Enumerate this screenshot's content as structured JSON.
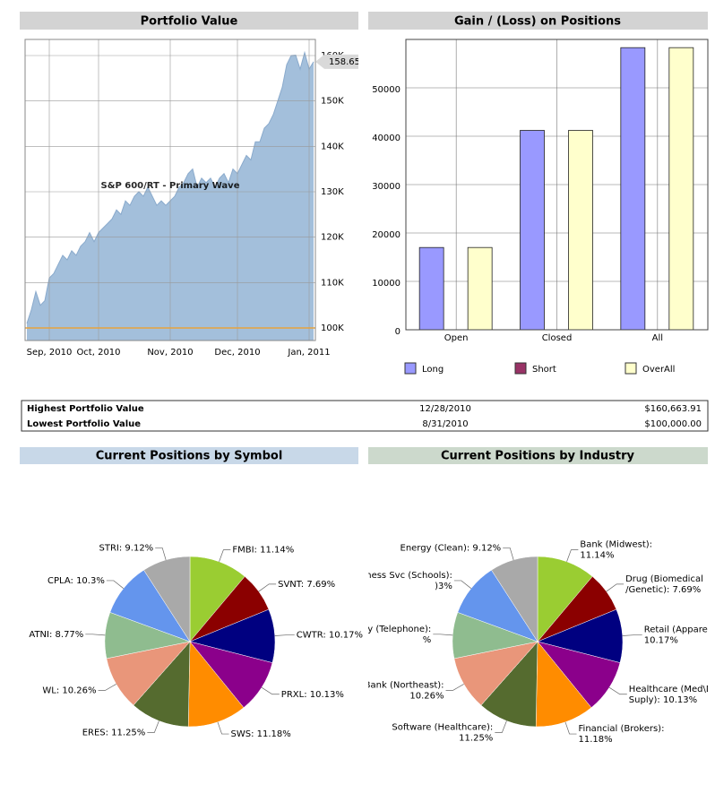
{
  "chart_data": [
    {
      "type": "area",
      "title": "Portfolio Value",
      "watermark": "S&P 600/RT - Primary Wave",
      "categories": [
        null,
        null,
        null,
        null,
        null,
        "Sep, 2010",
        null,
        null,
        null,
        null,
        null,
        null,
        null,
        null,
        null,
        null,
        "Oct, 2010",
        null,
        null,
        null,
        null,
        null,
        null,
        null,
        null,
        null,
        null,
        null,
        null,
        null,
        null,
        null,
        "Nov, 2010",
        null,
        null,
        null,
        null,
        null,
        null,
        null,
        null,
        null,
        null,
        null,
        null,
        null,
        null,
        "Dec, 2010",
        null,
        null,
        null,
        null,
        null,
        null,
        null,
        null,
        null,
        null,
        null,
        null,
        null,
        null,
        null,
        "Jan, 2011",
        null
      ],
      "values": [
        101,
        104,
        108,
        105,
        106,
        111,
        112,
        114,
        116,
        115,
        117,
        116,
        118,
        119,
        121,
        119,
        121,
        122,
        123,
        124,
        126,
        125,
        128,
        127,
        129,
        130,
        129,
        131,
        129,
        127,
        128,
        127,
        128,
        129,
        131,
        132,
        134,
        135,
        131,
        133,
        132,
        133,
        131,
        133,
        134,
        132,
        135,
        134,
        136,
        138,
        137,
        141,
        141,
        144,
        145,
        147,
        150,
        153,
        158,
        160,
        160.1,
        157,
        160.66,
        157,
        158.65
      ],
      "value_labels": [
        null,
        null,
        null,
        null,
        null,
        null,
        null,
        null,
        null,
        null,
        null,
        null,
        null,
        null,
        null,
        null,
        null,
        null,
        null,
        null,
        null,
        null,
        null,
        null,
        null,
        null,
        null,
        null,
        null,
        null,
        null,
        null,
        null,
        null,
        null,
        null,
        null,
        null,
        null,
        null,
        null,
        null,
        null,
        null,
        null,
        null,
        null,
        null,
        null,
        null,
        null,
        null,
        null,
        null,
        null,
        null,
        null,
        null,
        null,
        null,
        null,
        null,
        null,
        null,
        "158.65"
      ],
      "color": "#a3bfdb",
      "line_color": "#8aaacc",
      "baseline": 100,
      "baseline_color": "#e8a33c",
      "ylim": [
        97.24,
        163.55
      ],
      "yticks": [
        {
          "value": 100,
          "label": "100K"
        },
        {
          "value": 110,
          "label": "110K"
        },
        {
          "value": 120,
          "label": "120K"
        },
        {
          "value": 130,
          "label": "130K"
        },
        {
          "value": 140,
          "label": "140K"
        },
        {
          "value": 150,
          "label": "150K"
        },
        {
          "value": 160,
          "label": "160K"
        }
      ],
      "grid": true
    },
    {
      "type": "bar",
      "title": "Gain / (Loss) on Positions",
      "categories": [
        "Open",
        "Closed",
        "All"
      ],
      "series": [
        {
          "name": "Long",
          "color": "#9999ff",
          "values": [
            17000,
            41200,
            58300
          ]
        },
        {
          "name": "Short",
          "color": "#993366",
          "values": [
            0,
            0,
            0
          ]
        },
        {
          "name": "OverAll",
          "color": "#ffffcc",
          "values": [
            17000,
            41200,
            58300
          ]
        }
      ],
      "ylim": [
        0,
        60000
      ],
      "yticks": [
        0,
        10000,
        20000,
        30000,
        40000,
        50000
      ],
      "grid": true
    },
    {
      "type": "pie",
      "title": "Current Positions by Symbol",
      "values": [
        11.14,
        7.69,
        10.17,
        10.13,
        11.18,
        11.25,
        10.26,
        8.77,
        10.3,
        9.12
      ],
      "value_labels": [
        [
          "FMBI: 11.14%"
        ],
        [
          "SVNT: 7.69%"
        ],
        [
          "CWTR: 10.17%"
        ],
        [
          "PRXL: 10.13%"
        ],
        [
          "SWS: 11.18%"
        ],
        [
          "ERES: 11.25%"
        ],
        [
          "WL: 10.26%"
        ],
        [
          "ATNI: 8.77%"
        ],
        [
          "CPLA: 10.3%"
        ],
        [
          "STRI: 9.12%"
        ]
      ],
      "colors": [
        "#9acd32",
        "#8b0000",
        "#000080",
        "#8b008b",
        "#ff8c00",
        "#556b2f",
        "#e9967a",
        "#8fbc8f",
        "#6495ed",
        "#a9a9a9"
      ]
    },
    {
      "type": "pie",
      "title": "Current Positions by Industry",
      "values": [
        11.14,
        7.69,
        10.17,
        10.13,
        11.18,
        11.25,
        10.26,
        8.77,
        10.3,
        9.12
      ],
      "value_labels": [
        [
          "Bank (Midwest):",
          "11.14%"
        ],
        [
          "Drug (Biomedical",
          "/Genetic): 7.69%"
        ],
        [
          "Retail (Apparel",
          "10.17%"
        ],
        [
          "Healthcare (Med\\D",
          "Suply): 10.13%"
        ],
        [
          "Financial (Brokers):",
          "11.18%"
        ],
        [
          "Software (Healthcare):",
          "11.25%"
        ],
        [
          "Bank (Northeast):",
          "10.26%"
        ],
        [
          "ty (Telephone):",
          "%"
        ],
        [
          "usiness Svc (Schools):",
          ")3%"
        ],
        [
          "Energy (Clean): 9.12%"
        ]
      ],
      "colors": [
        "#9acd32",
        "#8b0000",
        "#000080",
        "#8b008b",
        "#ff8c00",
        "#556b2f",
        "#e9967a",
        "#8fbc8f",
        "#6495ed",
        "#a9a9a9"
      ]
    }
  ],
  "table": {
    "rows": [
      [
        "Highest Portfolio Value",
        "12/28/2010",
        "$160,663.91"
      ],
      [
        "Lowest Portfolio Value",
        "8/31/2010",
        "$100,000.00"
      ]
    ]
  }
}
